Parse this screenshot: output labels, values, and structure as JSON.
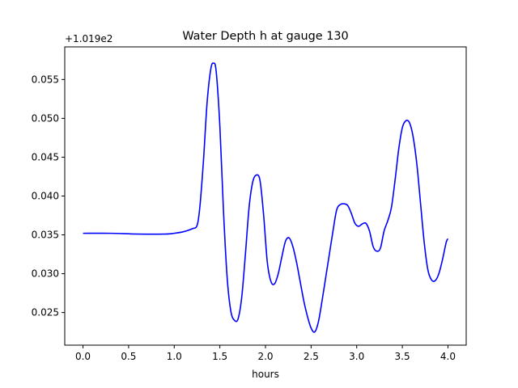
{
  "chart_data": {
    "type": "line",
    "title": "Water Depth h at gauge 130",
    "xlabel": "hours",
    "ylabel": "",
    "y_offset_label": "+1.019e2",
    "xlim": [
      -0.2,
      4.2
    ],
    "ylim": [
      0.0208,
      0.0592
    ],
    "x_ticks": [
      0.0,
      0.5,
      1.0,
      1.5,
      2.0,
      2.5,
      3.0,
      3.5,
      4.0
    ],
    "x_tick_labels": [
      "0.0",
      "0.5",
      "1.0",
      "1.5",
      "2.0",
      "2.5",
      "3.0",
      "3.5",
      "4.0"
    ],
    "y_ticks": [
      0.025,
      0.03,
      0.035,
      0.04,
      0.045,
      0.05,
      0.055
    ],
    "y_tick_labels": [
      "0.025",
      "0.030",
      "0.035",
      "0.040",
      "0.045",
      "0.050",
      "0.055"
    ],
    "grid": false,
    "series": [
      {
        "color": "#0000ff",
        "x": [
          0.0,
          0.3,
          0.6,
          0.9,
          1.0,
          1.1,
          1.2,
          1.25,
          1.28,
          1.32,
          1.36,
          1.4,
          1.43,
          1.46,
          1.5,
          1.54,
          1.58,
          1.62,
          1.66,
          1.7,
          1.74,
          1.78,
          1.82,
          1.86,
          1.9,
          1.94,
          1.98,
          2.02,
          2.06,
          2.1,
          2.14,
          2.18,
          2.22,
          2.26,
          2.3,
          2.34,
          2.38,
          2.42,
          2.46,
          2.5,
          2.54,
          2.58,
          2.62,
          2.66,
          2.7,
          2.74,
          2.78,
          2.82,
          2.86,
          2.9,
          2.94,
          2.98,
          3.02,
          3.06,
          3.1,
          3.14,
          3.18,
          3.22,
          3.26,
          3.3,
          3.34,
          3.38,
          3.42,
          3.46,
          3.5,
          3.54,
          3.58,
          3.62,
          3.66,
          3.7,
          3.74,
          3.78,
          3.82,
          3.86,
          3.9,
          3.94,
          3.98,
          4.0
        ],
        "y": [
          0.0352,
          0.0352,
          0.0351,
          0.0351,
          0.0352,
          0.0354,
          0.0358,
          0.0362,
          0.0385,
          0.0445,
          0.052,
          0.0563,
          0.0571,
          0.056,
          0.049,
          0.038,
          0.0295,
          0.0252,
          0.024,
          0.0242,
          0.027,
          0.0325,
          0.0385,
          0.0418,
          0.0427,
          0.042,
          0.0375,
          0.0315,
          0.029,
          0.0287,
          0.03,
          0.0322,
          0.0342,
          0.0346,
          0.0335,
          0.0315,
          0.029,
          0.0265,
          0.0245,
          0.023,
          0.0225,
          0.0238,
          0.0265,
          0.0295,
          0.0325,
          0.0355,
          0.0382,
          0.0389,
          0.039,
          0.0388,
          0.0378,
          0.0365,
          0.0361,
          0.0364,
          0.0365,
          0.0355,
          0.0335,
          0.0329,
          0.0333,
          0.0355,
          0.0368,
          0.0385,
          0.042,
          0.046,
          0.0488,
          0.0497,
          0.0494,
          0.0475,
          0.044,
          0.039,
          0.034,
          0.0305,
          0.0292,
          0.0291,
          0.03,
          0.0318,
          0.034,
          0.0345
        ]
      }
    ]
  }
}
